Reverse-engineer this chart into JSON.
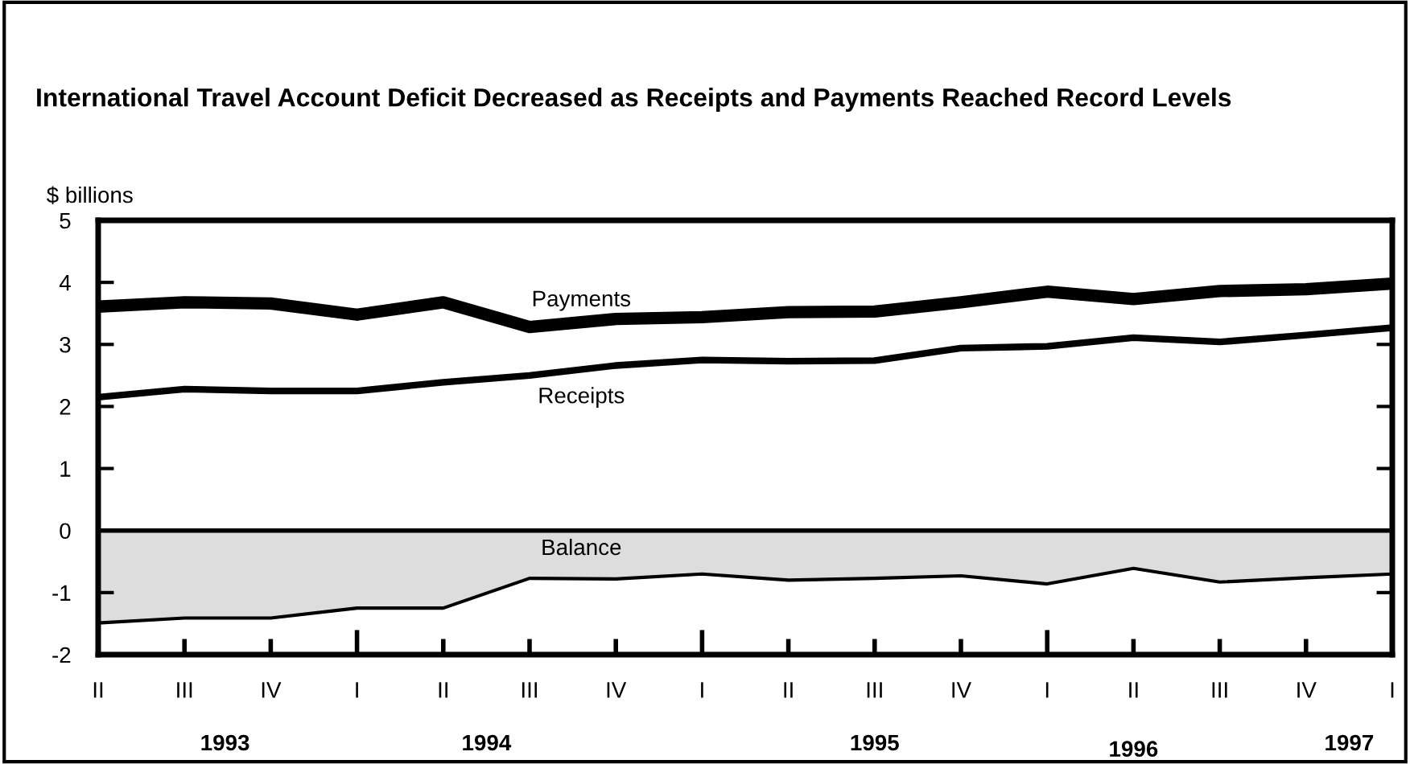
{
  "chart_data": {
    "type": "line",
    "title": "International Travel Account Deficit Decreased as Receipts and Payments Reached Record Levels",
    "ylabel": "$ billions",
    "categories": [
      "II",
      "III",
      "IV",
      "I",
      "II",
      "III",
      "IV",
      "I",
      "II",
      "III",
      "IV",
      "I",
      "II",
      "III",
      "IV",
      "I"
    ],
    "series": [
      {
        "name": "Payments",
        "color": "#000000",
        "values": [
          3.61,
          3.68,
          3.66,
          3.48,
          3.68,
          3.28,
          3.41,
          3.44,
          3.52,
          3.53,
          3.68,
          3.85,
          3.73,
          3.86,
          3.89,
          3.98
        ]
      },
      {
        "name": "Receipts",
        "color": "#000000",
        "values": [
          2.15,
          2.28,
          2.25,
          2.25,
          2.39,
          2.5,
          2.66,
          2.75,
          2.73,
          2.74,
          2.94,
          2.97,
          3.11,
          3.04,
          3.15,
          3.27
        ]
      },
      {
        "name": "Balance",
        "type": "area",
        "color": "#dddddd",
        "values": [
          -1.49,
          -1.41,
          -1.41,
          -1.25,
          -1.25,
          -0.77,
          -0.78,
          -0.7,
          -0.8,
          -0.77,
          -0.73,
          -0.86,
          -0.61,
          -0.83,
          -0.76,
          -0.7
        ]
      }
    ],
    "annotations": [
      "1993",
      "1994",
      "1995",
      "1996",
      "1997"
    ],
    "ylim": [
      -2,
      5
    ],
    "yticks": [
      -2,
      -1,
      0,
      1,
      2,
      3,
      4,
      5
    ],
    "ref_lines": [
      {
        "axis": "y",
        "value": 0,
        "color": "#000000"
      }
    ],
    "grid": false,
    "legend": false,
    "marker": "none",
    "line_style": "solid"
  }
}
